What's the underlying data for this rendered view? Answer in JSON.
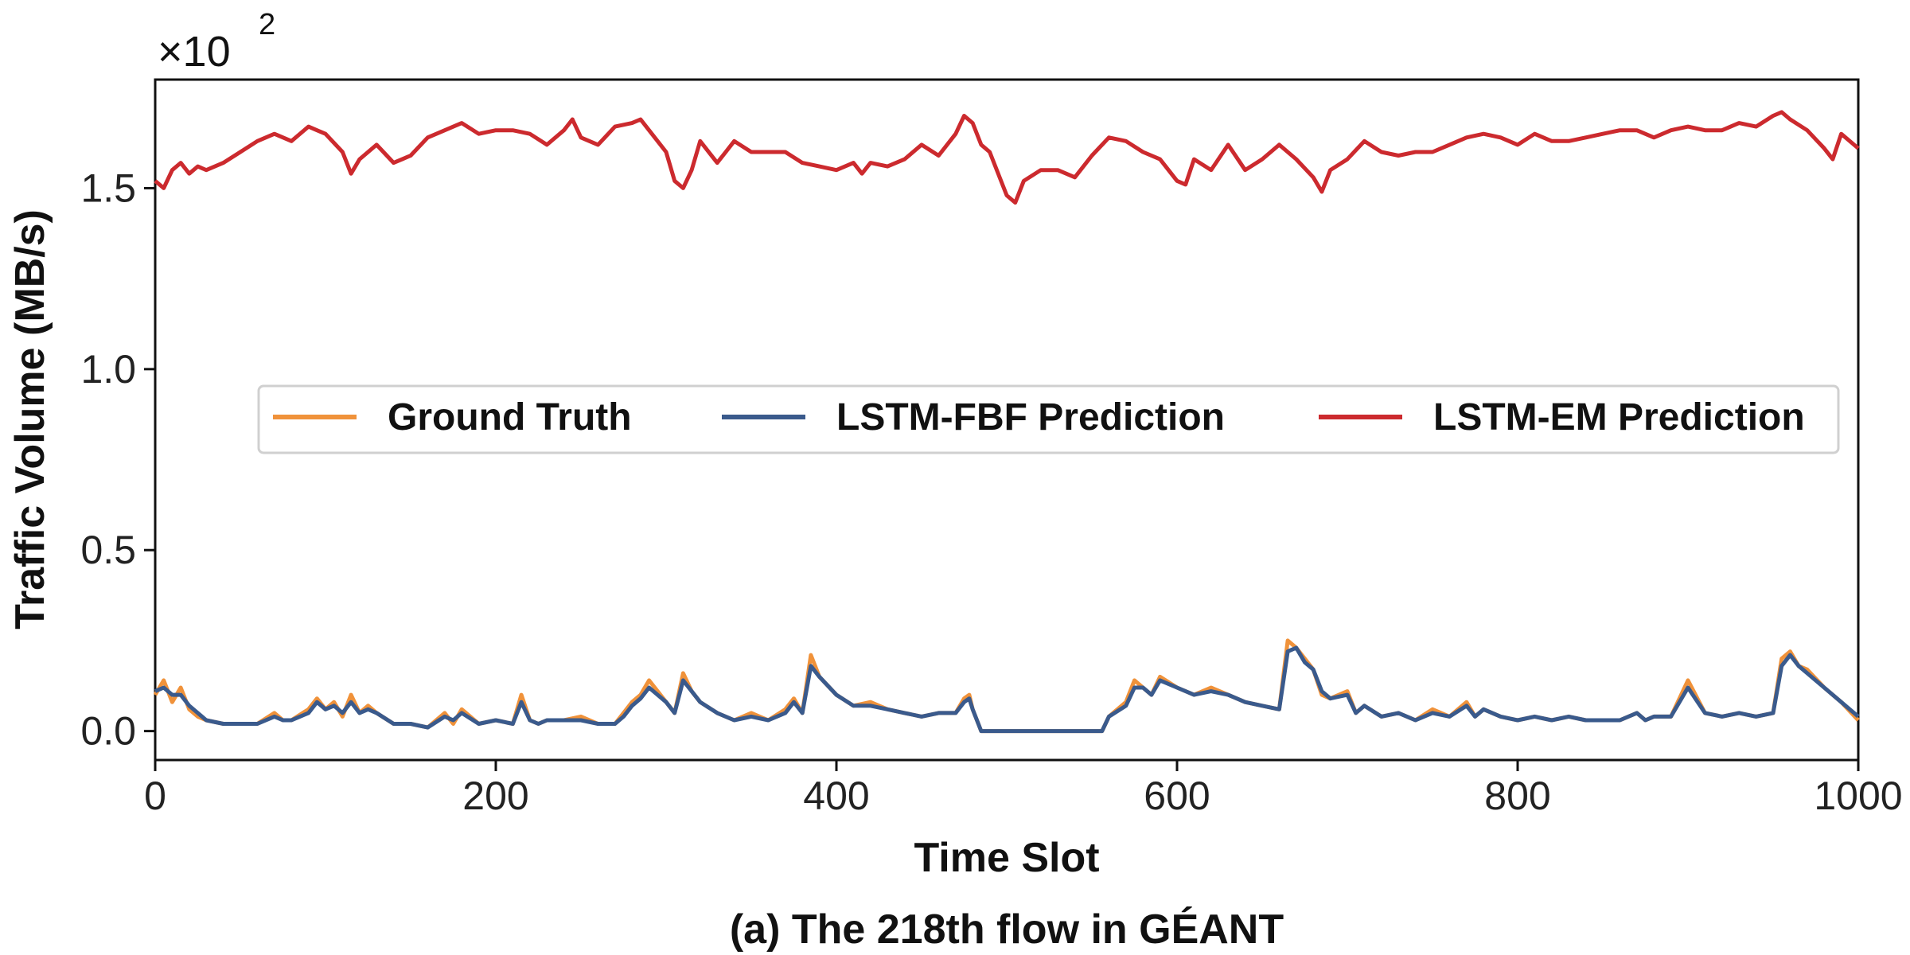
{
  "chart_data": {
    "type": "line",
    "caption": "(a) The 218th flow in GÉANT",
    "xlabel": "Time Slot",
    "ylabel": "Traffic Volume (MB/s)",
    "y_multiplier": {
      "base": "×10",
      "exponent": "2"
    },
    "xlim": [
      0,
      1000
    ],
    "ylim": [
      -0.08,
      1.8
    ],
    "x_ticks": [
      0,
      200,
      400,
      600,
      800,
      1000
    ],
    "x_tick_labels": [
      "0",
      "200",
      "400",
      "600",
      "800",
      "1000"
    ],
    "y_ticks": [
      0.0,
      0.5,
      1.0,
      1.5
    ],
    "y_tick_labels": [
      "0.0",
      "0.5",
      "1.0",
      "1.5"
    ],
    "legend_position": "center",
    "series": [
      {
        "name": "Ground Truth",
        "color": "#F0923A",
        "x": [
          0,
          5,
          10,
          15,
          20,
          25,
          30,
          40,
          50,
          60,
          70,
          75,
          80,
          90,
          95,
          100,
          105,
          110,
          115,
          120,
          125,
          130,
          140,
          150,
          160,
          170,
          175,
          180,
          190,
          200,
          210,
          215,
          220,
          225,
          230,
          240,
          250,
          260,
          270,
          275,
          280,
          285,
          290,
          300,
          305,
          310,
          315,
          320,
          330,
          340,
          350,
          360,
          370,
          375,
          380,
          385,
          390,
          400,
          410,
          420,
          430,
          440,
          450,
          460,
          470,
          475,
          478,
          480,
          485,
          490,
          500,
          520,
          540,
          556,
          560,
          570,
          575,
          580,
          585,
          590,
          600,
          610,
          620,
          630,
          640,
          650,
          660,
          665,
          670,
          675,
          680,
          685,
          690,
          700,
          705,
          710,
          720,
          730,
          740,
          750,
          760,
          770,
          775,
          780,
          790,
          800,
          810,
          820,
          830,
          840,
          850,
          860,
          870,
          875,
          880,
          890,
          900,
          910,
          920,
          930,
          940,
          950,
          955,
          960,
          965,
          970,
          980,
          990,
          1000
        ],
        "values": [
          0.1,
          0.14,
          0.08,
          0.12,
          0.06,
          0.04,
          0.03,
          0.02,
          0.02,
          0.02,
          0.05,
          0.03,
          0.03,
          0.06,
          0.09,
          0.06,
          0.08,
          0.04,
          0.1,
          0.05,
          0.07,
          0.05,
          0.02,
          0.02,
          0.01,
          0.05,
          0.02,
          0.06,
          0.02,
          0.03,
          0.02,
          0.1,
          0.03,
          0.02,
          0.03,
          0.03,
          0.04,
          0.02,
          0.02,
          0.05,
          0.08,
          0.1,
          0.14,
          0.08,
          0.05,
          0.16,
          0.11,
          0.08,
          0.05,
          0.03,
          0.05,
          0.03,
          0.06,
          0.09,
          0.05,
          0.21,
          0.15,
          0.1,
          0.07,
          0.08,
          0.06,
          0.05,
          0.04,
          0.05,
          0.05,
          0.09,
          0.1,
          0.06,
          0.0,
          0.0,
          0.0,
          0.0,
          0.0,
          0.0,
          0.04,
          0.08,
          0.14,
          0.12,
          0.1,
          0.15,
          0.12,
          0.1,
          0.12,
          0.1,
          0.08,
          0.07,
          0.06,
          0.25,
          0.23,
          0.2,
          0.17,
          0.1,
          0.09,
          0.11,
          0.05,
          0.07,
          0.04,
          0.05,
          0.03,
          0.06,
          0.04,
          0.08,
          0.04,
          0.06,
          0.04,
          0.03,
          0.04,
          0.03,
          0.04,
          0.03,
          0.03,
          0.03,
          0.05,
          0.03,
          0.04,
          0.04,
          0.14,
          0.05,
          0.04,
          0.05,
          0.04,
          0.05,
          0.2,
          0.22,
          0.18,
          0.17,
          0.12,
          0.08,
          0.03
        ]
      },
      {
        "name": "LSTM-FBF Prediction",
        "color": "#3A5A8C",
        "x": [
          0,
          5,
          10,
          15,
          20,
          25,
          30,
          40,
          50,
          60,
          70,
          75,
          80,
          90,
          95,
          100,
          105,
          110,
          115,
          120,
          125,
          130,
          140,
          150,
          160,
          170,
          175,
          180,
          190,
          200,
          210,
          215,
          220,
          225,
          230,
          240,
          250,
          260,
          270,
          275,
          280,
          285,
          290,
          300,
          305,
          310,
          315,
          320,
          330,
          340,
          350,
          360,
          370,
          375,
          380,
          385,
          390,
          400,
          410,
          420,
          430,
          440,
          450,
          460,
          470,
          475,
          478,
          480,
          485,
          490,
          500,
          520,
          540,
          556,
          560,
          570,
          575,
          580,
          585,
          590,
          600,
          610,
          620,
          630,
          640,
          650,
          660,
          665,
          670,
          675,
          680,
          685,
          690,
          700,
          705,
          710,
          720,
          730,
          740,
          750,
          760,
          770,
          775,
          780,
          790,
          800,
          810,
          820,
          830,
          840,
          850,
          860,
          870,
          875,
          880,
          890,
          900,
          910,
          920,
          930,
          940,
          950,
          955,
          960,
          965,
          970,
          980,
          990,
          1000
        ],
        "values": [
          0.11,
          0.12,
          0.1,
          0.1,
          0.07,
          0.05,
          0.03,
          0.02,
          0.02,
          0.02,
          0.04,
          0.03,
          0.03,
          0.05,
          0.08,
          0.06,
          0.07,
          0.05,
          0.08,
          0.05,
          0.06,
          0.05,
          0.02,
          0.02,
          0.01,
          0.04,
          0.03,
          0.05,
          0.02,
          0.03,
          0.02,
          0.08,
          0.03,
          0.02,
          0.03,
          0.03,
          0.03,
          0.02,
          0.02,
          0.04,
          0.07,
          0.09,
          0.12,
          0.08,
          0.05,
          0.14,
          0.11,
          0.08,
          0.05,
          0.03,
          0.04,
          0.03,
          0.05,
          0.08,
          0.05,
          0.18,
          0.15,
          0.1,
          0.07,
          0.07,
          0.06,
          0.05,
          0.04,
          0.05,
          0.05,
          0.08,
          0.09,
          0.06,
          0.0,
          0.0,
          0.0,
          0.0,
          0.0,
          0.0,
          0.04,
          0.07,
          0.12,
          0.12,
          0.1,
          0.14,
          0.12,
          0.1,
          0.11,
          0.1,
          0.08,
          0.07,
          0.06,
          0.22,
          0.23,
          0.19,
          0.17,
          0.11,
          0.09,
          0.1,
          0.05,
          0.07,
          0.04,
          0.05,
          0.03,
          0.05,
          0.04,
          0.07,
          0.04,
          0.06,
          0.04,
          0.03,
          0.04,
          0.03,
          0.04,
          0.03,
          0.03,
          0.03,
          0.05,
          0.03,
          0.04,
          0.04,
          0.12,
          0.05,
          0.04,
          0.05,
          0.04,
          0.05,
          0.18,
          0.21,
          0.18,
          0.16,
          0.12,
          0.08,
          0.04
        ]
      },
      {
        "name": "LSTM-EM Prediction",
        "color": "#CC2A2E",
        "x": [
          0,
          5,
          10,
          15,
          20,
          25,
          30,
          40,
          50,
          60,
          70,
          80,
          90,
          95,
          100,
          110,
          115,
          120,
          125,
          130,
          140,
          150,
          160,
          170,
          180,
          190,
          200,
          210,
          220,
          230,
          240,
          245,
          250,
          260,
          270,
          280,
          285,
          290,
          300,
          305,
          310,
          315,
          320,
          330,
          335,
          340,
          350,
          360,
          370,
          380,
          390,
          400,
          410,
          415,
          420,
          430,
          440,
          450,
          460,
          470,
          475,
          480,
          485,
          490,
          500,
          505,
          510,
          520,
          530,
          540,
          550,
          560,
          570,
          580,
          590,
          600,
          605,
          610,
          620,
          630,
          640,
          650,
          660,
          670,
          680,
          685,
          690,
          700,
          710,
          720,
          730,
          740,
          750,
          760,
          770,
          780,
          790,
          800,
          810,
          820,
          830,
          840,
          850,
          860,
          870,
          880,
          890,
          900,
          910,
          920,
          930,
          940,
          950,
          955,
          960,
          970,
          980,
          985,
          990,
          1000
        ],
        "values": [
          1.52,
          1.5,
          1.55,
          1.57,
          1.54,
          1.56,
          1.55,
          1.57,
          1.6,
          1.63,
          1.65,
          1.63,
          1.67,
          1.66,
          1.65,
          1.6,
          1.54,
          1.58,
          1.6,
          1.62,
          1.57,
          1.59,
          1.64,
          1.66,
          1.68,
          1.65,
          1.66,
          1.66,
          1.65,
          1.62,
          1.66,
          1.69,
          1.64,
          1.62,
          1.67,
          1.68,
          1.69,
          1.66,
          1.6,
          1.52,
          1.5,
          1.55,
          1.63,
          1.57,
          1.6,
          1.63,
          1.6,
          1.6,
          1.6,
          1.57,
          1.56,
          1.55,
          1.57,
          1.54,
          1.57,
          1.56,
          1.58,
          1.62,
          1.59,
          1.65,
          1.7,
          1.68,
          1.62,
          1.6,
          1.48,
          1.46,
          1.52,
          1.55,
          1.55,
          1.53,
          1.59,
          1.64,
          1.63,
          1.6,
          1.58,
          1.52,
          1.51,
          1.58,
          1.55,
          1.62,
          1.55,
          1.58,
          1.62,
          1.58,
          1.53,
          1.49,
          1.55,
          1.58,
          1.63,
          1.6,
          1.59,
          1.6,
          1.6,
          1.62,
          1.64,
          1.65,
          1.64,
          1.62,
          1.65,
          1.63,
          1.63,
          1.64,
          1.65,
          1.66,
          1.66,
          1.64,
          1.66,
          1.67,
          1.66,
          1.66,
          1.68,
          1.67,
          1.7,
          1.71,
          1.69,
          1.66,
          1.61,
          1.58,
          1.65,
          1.61
        ]
      }
    ]
  }
}
